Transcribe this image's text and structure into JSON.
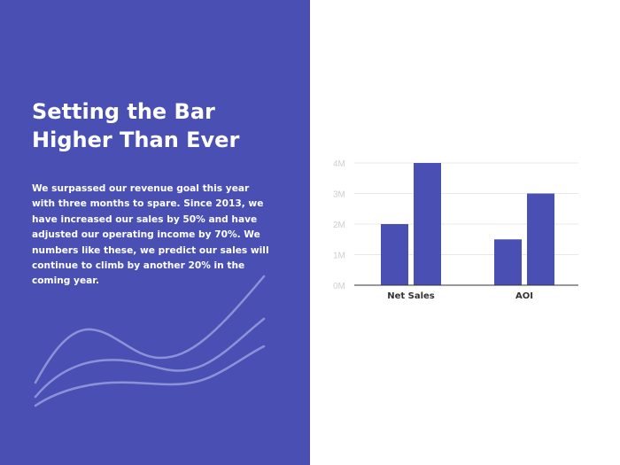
{
  "title_lines": [
    "Setting the Bar",
    "Higher Than Ever"
  ],
  "body_text": "We surpassed our revenue goal this year with three months to spare. Since 2013, we have increased our sales by 50% and have adjusted our operating income by 70%. We numbers like these, we predict our sales will continue to climb by another 20% in the coming year.",
  "colors": {
    "panel": "#4a50b3",
    "bar": "#4a50b3",
    "tick": "#cfcfcf",
    "grid": "#e8e8e8",
    "axis": "#333333",
    "wave": "#8d92d8"
  },
  "chart_data": {
    "type": "bar",
    "categories": [
      "Net Sales",
      "AOI"
    ],
    "series": [
      {
        "values": [
          2,
          1.5
        ]
      },
      {
        "values": [
          4,
          3
        ]
      }
    ],
    "ylim": [
      0,
      4
    ],
    "yticks": [
      {
        "value": 0,
        "label": "0M"
      },
      {
        "value": 1,
        "label": "1M"
      },
      {
        "value": 2,
        "label": "2M"
      },
      {
        "value": 3,
        "label": "3M"
      },
      {
        "value": 4,
        "label": "4M"
      }
    ],
    "grid": true
  }
}
